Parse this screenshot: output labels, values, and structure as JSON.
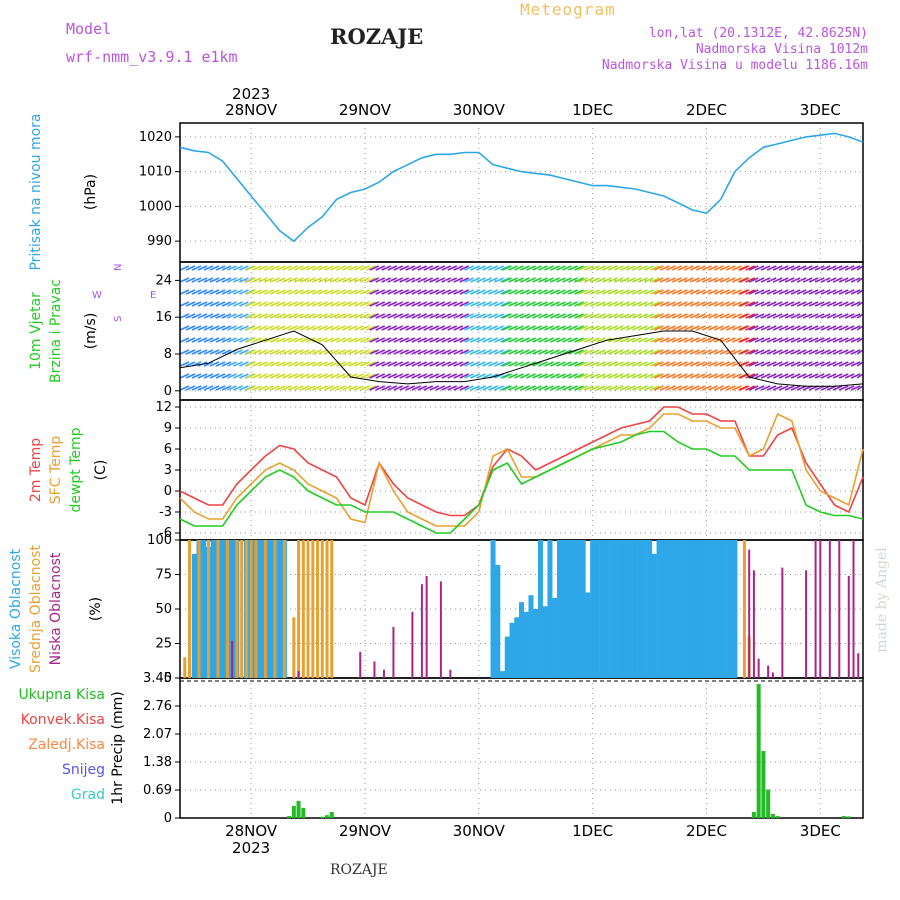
{
  "header": {
    "model_label": "Model",
    "model_name": "wrf-nmm_v3.9.1  e1km",
    "title": "ROZAJE",
    "meteogram_label": "Meteogram",
    "lonlat": "lon,lat (20.1312E, 42.8625N)",
    "elevation": "Nadmorska Visina 1012m",
    "model_elevation": "Nadmorska Visina u modelu 1186.16m"
  },
  "footer": {
    "station": "ROZAJE",
    "watermark": "made by Angel"
  },
  "colors": {
    "pressure": "#2ea7e8",
    "temp2m": "#ee4444",
    "sfc": "#e8a030",
    "dewpt": "#22cc22",
    "high_cloud": "#2ea7e8",
    "mid_cloud": "#e8a030",
    "low_cloud": "#aa2288",
    "total_precip": "#22bb22",
    "conv_precip": "#ee4444",
    "frz_precip": "#ff8844",
    "snow": "#5555ee",
    "graupel": "#33cccc"
  },
  "chart_data": [
    {
      "panel": "pressure",
      "type": "line",
      "ylabel_side": "Pritisak na nivou mora",
      "ylabel": "(hPa)",
      "ylim": [
        984,
        1024
      ],
      "yticks": [
        990,
        1000,
        1010,
        1020
      ],
      "xlim_hours": [
        0,
        144
      ],
      "xticks": [
        "28NOV",
        "29NOV",
        "30NOV",
        "1DEC",
        "2DEC",
        "3DEC"
      ],
      "year": "2023",
      "grid": true,
      "series": [
        {
          "name": "Pritisak na nivou mora",
          "x": [
            0,
            3,
            6,
            9,
            12,
            15,
            18,
            21,
            24,
            27,
            30,
            33,
            36,
            39,
            42,
            45,
            48,
            51,
            54,
            57,
            60,
            63,
            66,
            69,
            72,
            75,
            78,
            81,
            84,
            87,
            90,
            93,
            96,
            99,
            102,
            105,
            108,
            111,
            114,
            117,
            120,
            123,
            126,
            129,
            132,
            135,
            138,
            141,
            144
          ],
          "values": [
            1017,
            1016,
            1015.5,
            1013,
            1008,
            1003,
            998,
            993,
            990,
            994,
            997,
            1002,
            1004,
            1005,
            1007,
            1010,
            1012,
            1014,
            1015,
            1015,
            1015.5,
            1015.5,
            1012,
            1011,
            1010,
            1009.5,
            1009,
            1008,
            1007,
            1006,
            1006,
            1005.5,
            1005,
            1004,
            1003,
            1001,
            999,
            998,
            1002,
            1010,
            1014,
            1017,
            1018,
            1019,
            1020,
            1020.5,
            1021,
            1020,
            1018.5
          ]
        }
      ]
    },
    {
      "panel": "wind",
      "type": "line",
      "ylabel_side": [
        "10m Vjetar",
        "Brzina i Pravac"
      ],
      "ylabel": "(m/s)",
      "compass": {
        "n": "N",
        "s": "S",
        "e": "E",
        "w": "W"
      },
      "ylim": [
        -2,
        28
      ],
      "yticks": [
        0,
        8,
        16,
        24
      ],
      "series": [
        {
          "name": "wind speed",
          "x": [
            0,
            6,
            12,
            18,
            24,
            30,
            36,
            42,
            48,
            54,
            60,
            66,
            72,
            78,
            84,
            90,
            96,
            102,
            108,
            114,
            120,
            126,
            132,
            138,
            144
          ],
          "values": [
            5,
            6,
            9,
            11,
            13,
            10,
            3,
            2,
            1.5,
            2,
            2,
            3,
            5,
            7,
            9,
            11,
            12,
            13,
            13,
            11,
            3,
            1.5,
            1,
            1,
            1.5
          ]
        }
      ],
      "wind_color_zones": [
        {
          "from": 0,
          "to": 10,
          "color": "#3388ff"
        },
        {
          "from": 10,
          "to": 14,
          "color": "#44aaff"
        },
        {
          "from": 14,
          "to": 40,
          "color": "#ccdd22"
        },
        {
          "from": 40,
          "to": 60,
          "color": "#8822cc"
        },
        {
          "from": 60,
          "to": 68,
          "color": "#33bbee"
        },
        {
          "from": 68,
          "to": 84,
          "color": "#22cc33"
        },
        {
          "from": 84,
          "to": 100,
          "color": "#aadd22"
        },
        {
          "from": 100,
          "to": 118,
          "color": "#ff7722"
        },
        {
          "from": 118,
          "to": 120,
          "color": "#ee2233"
        },
        {
          "from": 120,
          "to": 144,
          "color": "#8822cc"
        }
      ]
    },
    {
      "panel": "temperature",
      "type": "line",
      "ylabel_side": [
        "2m Temp",
        "SFC Temp",
        "dewpt Temp"
      ],
      "ylabel": "(C)",
      "ylim": [
        -7,
        13
      ],
      "yticks": [
        -6,
        -3,
        0,
        3,
        6,
        9,
        12
      ],
      "series": [
        {
          "name": "2m Temp",
          "x": [
            0,
            3,
            6,
            9,
            12,
            15,
            18,
            21,
            24,
            27,
            30,
            33,
            36,
            39,
            42,
            45,
            48,
            51,
            54,
            57,
            60,
            63,
            66,
            69,
            72,
            75,
            78,
            81,
            84,
            87,
            90,
            93,
            96,
            99,
            102,
            105,
            108,
            111,
            114,
            117,
            120,
            123,
            126,
            129,
            132,
            135,
            138,
            141,
            144
          ],
          "values": [
            0,
            -1,
            -2,
            -2,
            1,
            3,
            5,
            6.5,
            6,
            4,
            3,
            2,
            -1,
            -2,
            4,
            1,
            -1,
            -2,
            -3,
            -3.5,
            -3.5,
            -2,
            3.5,
            6,
            5,
            3,
            4,
            5,
            6,
            7,
            8,
            9,
            9.5,
            10,
            12,
            12,
            11,
            11,
            10,
            10,
            5,
            5,
            8,
            9,
            4,
            1,
            -2,
            -3,
            2
          ]
        },
        {
          "name": "SFC Temp",
          "x": [
            0,
            3,
            6,
            9,
            12,
            15,
            18,
            21,
            24,
            27,
            30,
            33,
            36,
            39,
            42,
            45,
            48,
            51,
            54,
            57,
            60,
            63,
            66,
            69,
            72,
            75,
            78,
            81,
            84,
            87,
            90,
            93,
            96,
            99,
            102,
            105,
            108,
            111,
            114,
            117,
            120,
            123,
            126,
            129,
            132,
            135,
            138,
            141,
            144
          ],
          "values": [
            -1,
            -3,
            -4,
            -4,
            -1,
            1,
            3,
            4,
            3,
            1,
            0,
            -1,
            -4,
            -4.5,
            4,
            0,
            -3,
            -4,
            -5,
            -5,
            -5,
            -3,
            5,
            6,
            2,
            2,
            3,
            4,
            5,
            6,
            7,
            8,
            8,
            9,
            11,
            11,
            10,
            10,
            9,
            9,
            5,
            6,
            11,
            10,
            3,
            0,
            -1,
            -2,
            6
          ]
        },
        {
          "name": "dewpt Temp",
          "x": [
            0,
            3,
            6,
            9,
            12,
            15,
            18,
            21,
            24,
            27,
            30,
            33,
            36,
            39,
            42,
            45,
            48,
            51,
            54,
            57,
            60,
            63,
            66,
            69,
            72,
            75,
            78,
            81,
            84,
            87,
            90,
            93,
            96,
            99,
            102,
            105,
            108,
            111,
            114,
            117,
            120,
            123,
            126,
            129,
            132,
            135,
            138,
            141,
            144
          ],
          "values": [
            -4,
            -5,
            -5,
            -5,
            -2,
            0,
            2,
            3,
            2,
            0,
            -1,
            -2,
            -2,
            -3,
            -3,
            -3,
            -4,
            -5,
            -6,
            -6,
            -4,
            -2,
            3,
            4,
            1,
            2,
            3,
            4,
            5,
            6,
            6.5,
            7,
            8,
            8.5,
            8.5,
            7,
            6,
            6,
            5,
            5,
            3,
            3,
            3,
            3,
            -2,
            -3,
            -3.5,
            -3.5,
            -4
          ]
        }
      ]
    },
    {
      "panel": "clouds",
      "type": "bar",
      "ylabel_side": [
        "Visoka Oblacnost",
        "Srednja Oblacnost",
        "Niska Oblacnost"
      ],
      "ylabel": "(%)",
      "ylim": [
        0,
        100
      ],
      "yticks": [
        0,
        25,
        50,
        75,
        100
      ],
      "series": [
        {
          "name": "Visoka Oblacnost",
          "x": [
            3,
            4,
            5,
            6,
            7,
            8,
            9,
            10,
            11,
            12,
            14,
            15,
            16,
            17,
            18,
            19,
            20,
            21,
            22,
            66,
            67,
            68,
            69,
            70,
            71,
            72,
            73,
            74,
            75,
            76,
            77,
            78,
            79,
            80,
            81,
            82,
            83,
            84,
            85,
            86,
            87,
            88,
            89,
            90,
            91,
            92,
            93,
            94,
            95,
            96,
            97,
            98,
            99,
            100,
            101,
            102,
            103,
            104,
            105,
            106,
            107,
            108,
            109,
            110,
            111,
            112,
            113,
            114,
            115,
            116,
            117
          ],
          "values": [
            90,
            100,
            100,
            95,
            100,
            100,
            100,
            100,
            100,
            100,
            100,
            100,
            100,
            100,
            100,
            100,
            100,
            100,
            100,
            100,
            82,
            5,
            30,
            40,
            44,
            55,
            48,
            60,
            50,
            100,
            52,
            100,
            58,
            100,
            100,
            100,
            100,
            100,
            100,
            62,
            100,
            100,
            100,
            100,
            100,
            100,
            100,
            100,
            100,
            100,
            100,
            100,
            100,
            90,
            100,
            100,
            100,
            100,
            100,
            100,
            100,
            100,
            100,
            100,
            100,
            100,
            100,
            100,
            100,
            100,
            100
          ]
        },
        {
          "name": "Srednja Oblacnost",
          "x": [
            1,
            2,
            4,
            6,
            8,
            10,
            12,
            13,
            14,
            15,
            16,
            18,
            20,
            22,
            24,
            25,
            26,
            27,
            28,
            29,
            30,
            31,
            32,
            119,
            120
          ],
          "values": [
            15,
            100,
            100,
            100,
            100,
            100,
            100,
            100,
            100,
            100,
            100,
            100,
            100,
            100,
            44,
            100,
            100,
            100,
            100,
            100,
            100,
            100,
            100,
            100,
            30
          ]
        },
        {
          "name": "Niska Oblacnost",
          "x": [
            11,
            25,
            38,
            41,
            43,
            45,
            49,
            51,
            52,
            55,
            57,
            120,
            121,
            122,
            124,
            125,
            127,
            132,
            134,
            135,
            137,
            139,
            141,
            142,
            143
          ],
          "values": [
            27,
            5,
            19,
            12,
            6,
            37,
            48,
            68,
            74,
            70,
            6,
            93,
            78,
            14,
            9,
            4,
            80,
            78,
            100,
            100,
            100,
            100,
            74,
            100,
            18
          ]
        }
      ]
    },
    {
      "panel": "precip",
      "type": "bar",
      "ylabel": "1hr Precip (mm)",
      "legend": [
        "Ukupna  Kisa",
        "Konvek.Kisa",
        "Zaledj.Kisa",
        "Snijeg",
        "Grad"
      ],
      "ylim": [
        0,
        3.45
      ],
      "yticks": [
        0,
        0.69,
        1.38,
        2.07,
        2.76,
        3.45
      ],
      "series": [
        {
          "name": "Ukupna  Kisa",
          "x": [
            23,
            24,
            25,
            26,
            30,
            31,
            32,
            121,
            122,
            123,
            124,
            125,
            126,
            140,
            141
          ],
          "values": [
            0.05,
            0.3,
            0.42,
            0.25,
            0.03,
            0.07,
            0.15,
            0.15,
            3.3,
            1.65,
            0.7,
            0.1,
            0.05,
            0.05,
            0.04
          ]
        }
      ]
    }
  ]
}
